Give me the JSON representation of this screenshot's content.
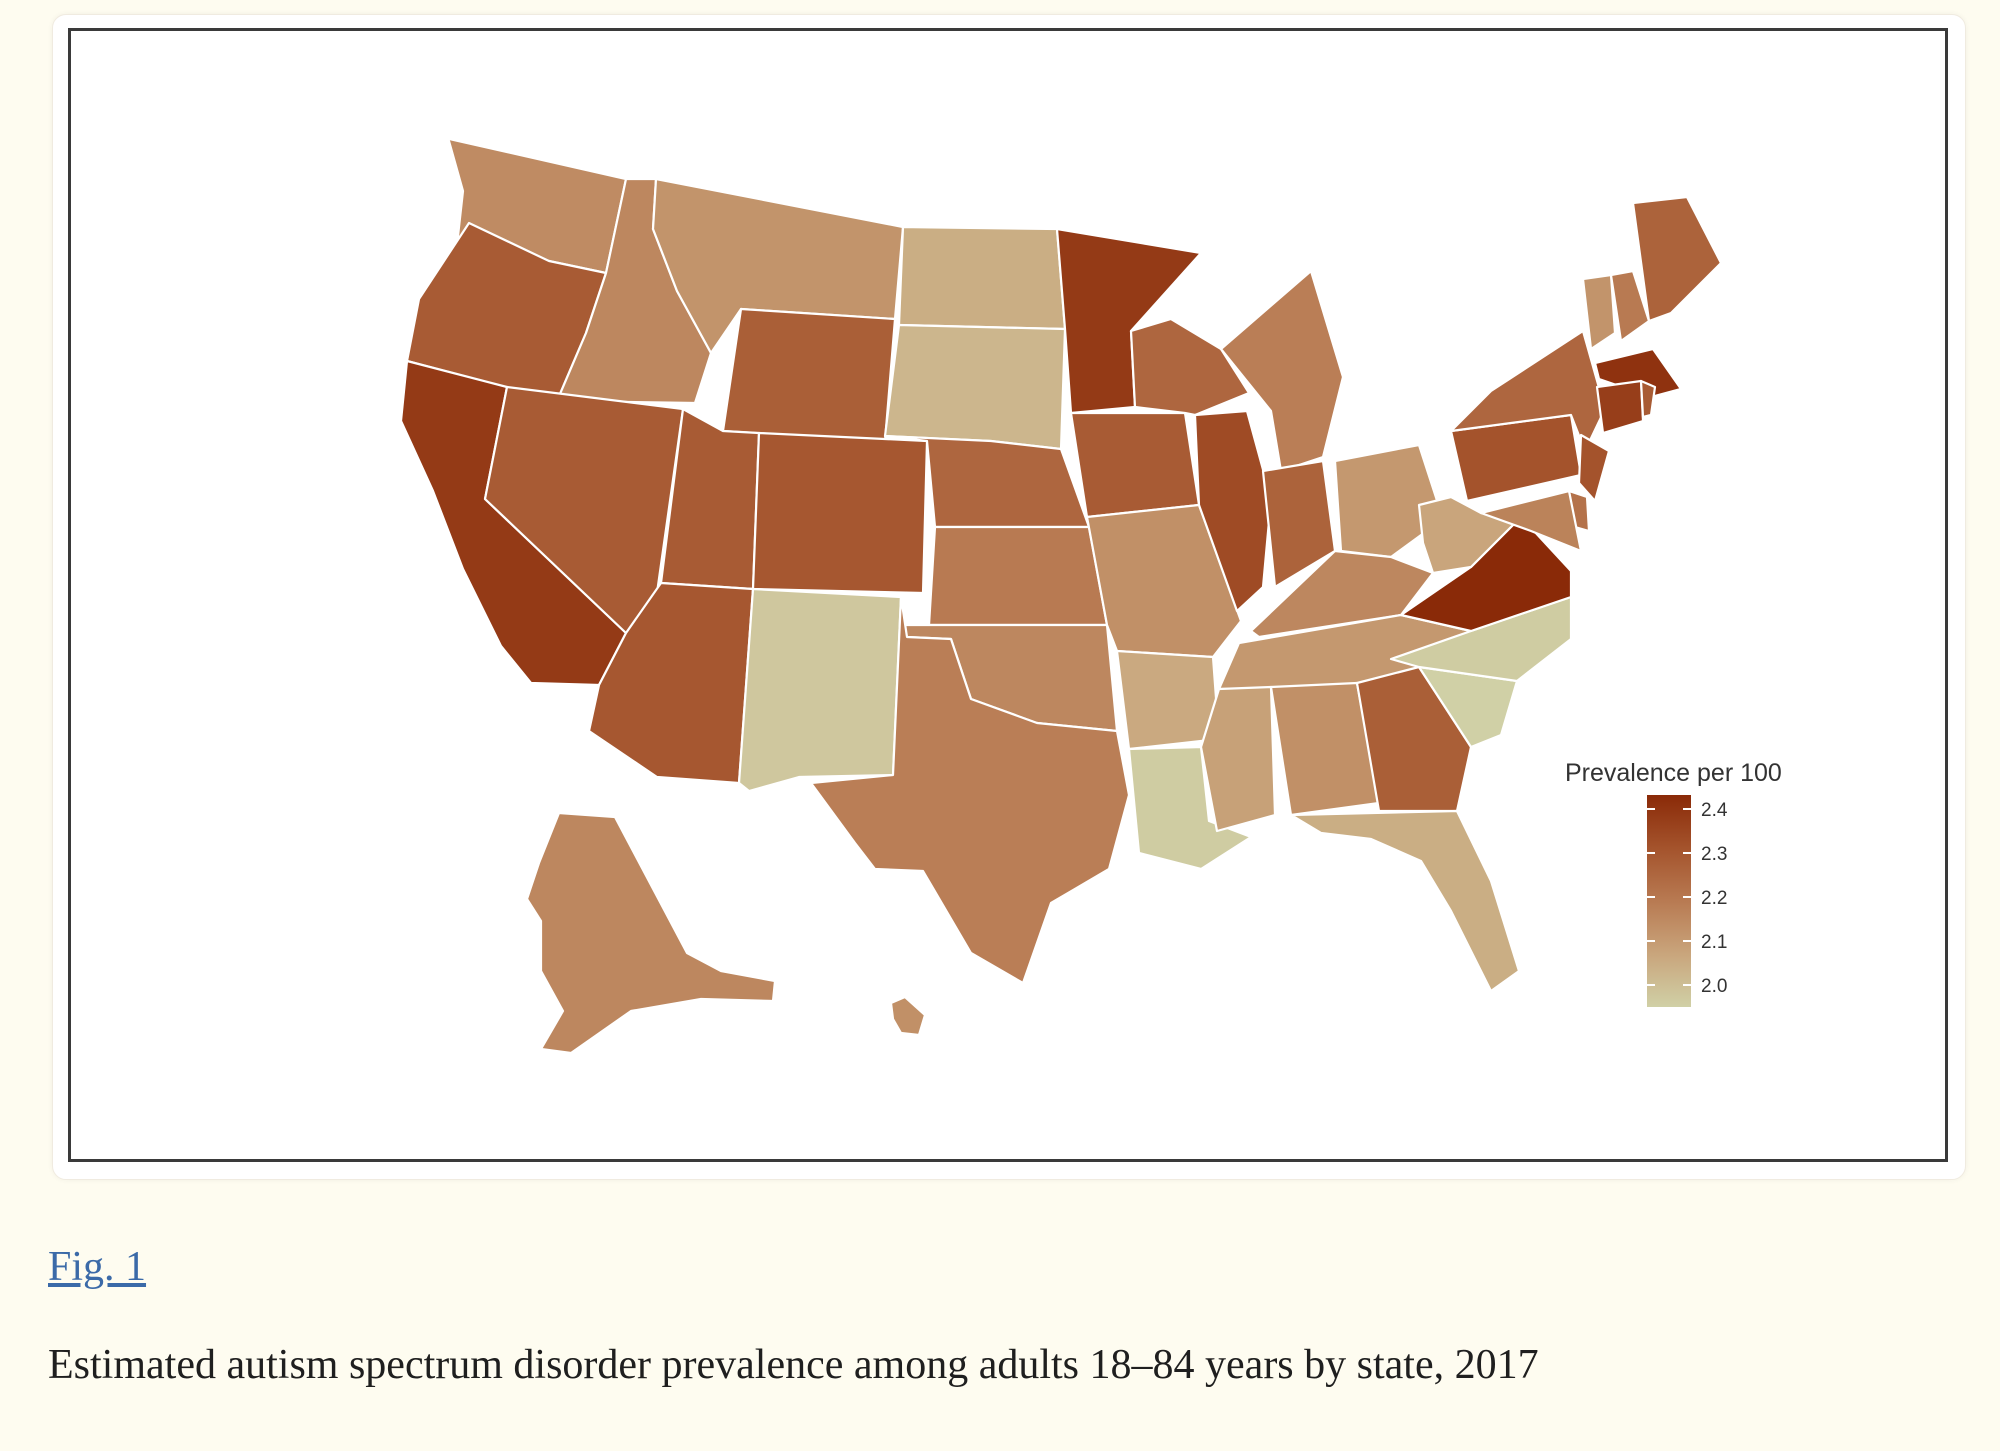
{
  "figure": {
    "link_label": "Fig. 1",
    "caption": "Estimated autism spectrum disorder prevalence among adults 18–84 years by state, 2017"
  },
  "legend": {
    "title": "Prevalence per 100",
    "ticks": [
      "2.4",
      "2.3",
      "2.2",
      "2.1",
      "2.0"
    ],
    "gradient": [
      "#8a2a08",
      "#a4532c",
      "#b87a52",
      "#c9a57c",
      "#d0d0a6"
    ]
  },
  "chart_data": {
    "type": "choropleth",
    "units": "Prevalence per 100",
    "scale_range": [
      2.0,
      2.4
    ],
    "states": {
      "WA": 2.16,
      "OR": 2.28,
      "CA": 2.36,
      "NV": 2.28,
      "ID": 2.17,
      "MT": 2.14,
      "WY": 2.27,
      "UT": 2.28,
      "AZ": 2.29,
      "CO": 2.29,
      "NM": 2.02,
      "ND": 2.08,
      "SD": 2.06,
      "NE": 2.25,
      "KS": 2.2,
      "OK": 2.17,
      "TX": 2.19,
      "MN": 2.36,
      "IA": 2.28,
      "MO": 2.15,
      "AR": 2.09,
      "LA": 2.01,
      "WI": 2.25,
      "IL": 2.32,
      "MI": 2.19,
      "IN": 2.26,
      "OH": 2.13,
      "KY": 2.17,
      "TN": 2.13,
      "MS": 2.11,
      "AL": 2.15,
      "GA": 2.27,
      "FL": 2.08,
      "SC": 2.0,
      "NC": 2.01,
      "VA": 2.4,
      "WV": 2.1,
      "PA": 2.3,
      "NY": 2.25,
      "ME": 2.26,
      "VT": 2.14,
      "NH": 2.2,
      "MA": 2.38,
      "CT": 2.35,
      "RI": 2.28,
      "NJ": 2.3,
      "DE": 2.22,
      "MD": 2.18,
      "AK": 2.17,
      "HI": 2.15
    }
  }
}
